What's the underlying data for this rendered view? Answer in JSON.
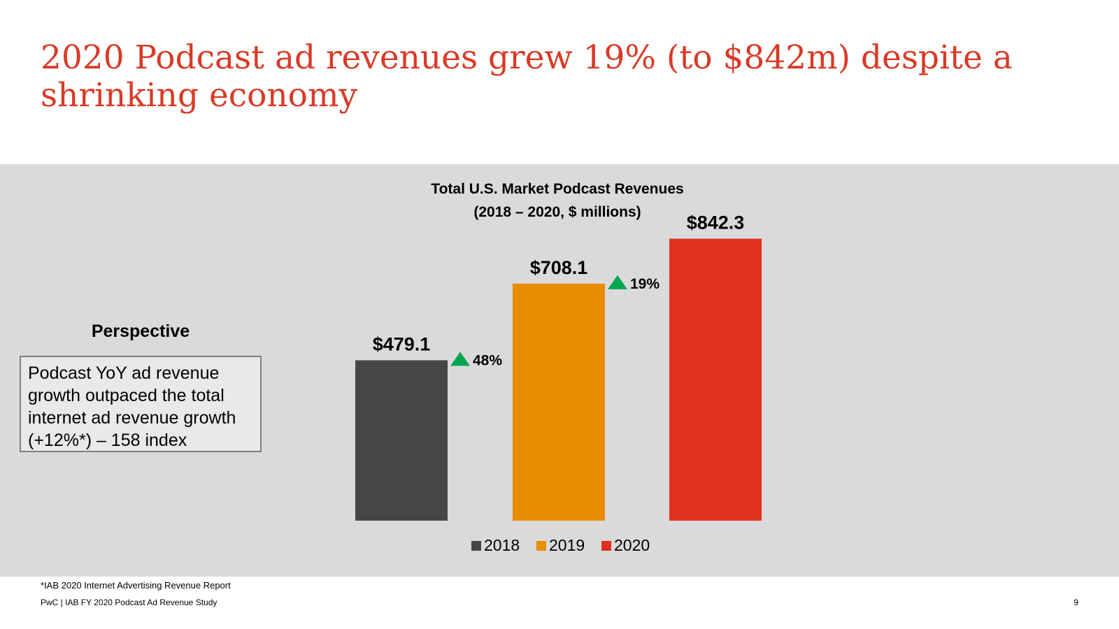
{
  "slide": {
    "headline": "2020 Podcast ad revenues grew 19% (to $842m) despite a shrinking economy",
    "perspective_title": "Perspective",
    "perspective_text": "Podcast YoY ad revenue growth outpaced the total internet ad revenue growth (+12%*) – 158 index",
    "footnote": "*IAB 2020 Internet Advertising Revenue Report",
    "footer": "PwC  |  IAB FY 2020 Podcast Ad Revenue Study",
    "page_number": "9"
  },
  "chart_data": {
    "type": "bar",
    "title": "Total U.S. Market Podcast Revenues",
    "subtitle": "(2018 – 2020, $ millions)",
    "categories": [
      "2018",
      "2019",
      "2020"
    ],
    "values": [
      479.1,
      708.1,
      842.3
    ],
    "value_labels": [
      "$479.1",
      "$708.1",
      "$842.3"
    ],
    "colors": [
      "#464646",
      "#e88c00",
      "#e0301e"
    ],
    "ylim": [
      0,
      1000
    ],
    "growth_labels": [
      "48%",
      "19%"
    ],
    "growth_color": "#00a651",
    "legend": {
      "placement": "bottom",
      "entries": [
        "2018",
        "2019",
        "2020"
      ]
    },
    "grid": false
  }
}
